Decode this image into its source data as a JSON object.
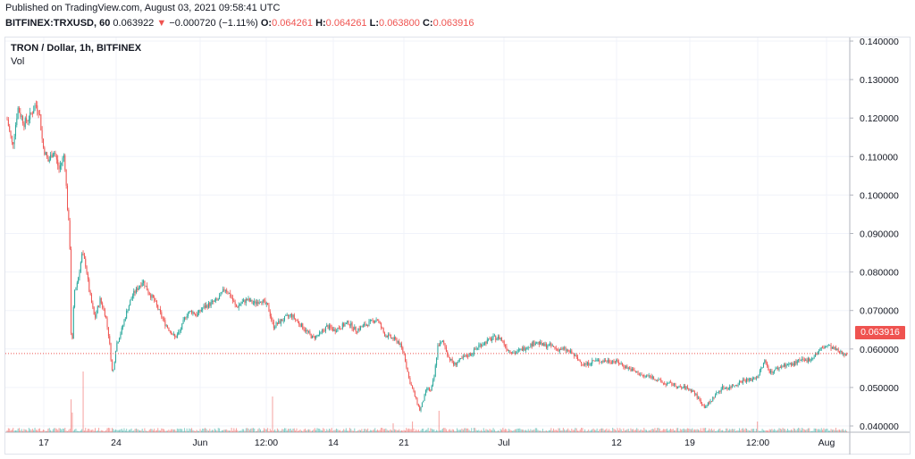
{
  "header": {
    "published": "Published on TradingView.com, August 03, 2021 09:58:41 UTC",
    "symbol_line": "BITFINEX:TRXUSD, 60",
    "last": "0.063922",
    "arrow": "▼",
    "change": "−0.000720 (−1.11%)",
    "o_label": "O:",
    "o_value": "0.064261",
    "h_label": "H:",
    "h_value": "0.064261",
    "l_label": "L:",
    "l_value": "0.063800",
    "c_label": "C:",
    "c_value": "0.063916"
  },
  "legend": {
    "title": "TRON / Dollar, 1h, BITFINEX",
    "volume": "Vol"
  },
  "price_axis": {
    "labels": [
      "0.140000",
      "0.130000",
      "0.120000",
      "0.110000",
      "0.100000",
      "0.090000",
      "0.080000",
      "0.070000",
      "0.060000",
      "0.050000",
      "0.040000"
    ],
    "values": [
      0.14,
      0.13,
      0.12,
      0.11,
      0.1,
      0.09,
      0.08,
      0.07,
      0.06,
      0.05,
      0.04
    ],
    "current_label": "0.063916",
    "current_value": 0.063916
  },
  "time_axis": {
    "labels": [
      "17",
      "24",
      "Jun",
      "12:00",
      "14",
      "21",
      "Jul",
      "12",
      "19",
      "12:00",
      "Aug"
    ]
  },
  "colors": {
    "up": "#26a69a",
    "down": "#ef5350",
    "grid": "#f0f3fa",
    "axis_text": "#131722"
  },
  "chart_data": {
    "type": "candlestick",
    "title": "TRON / Dollar, 1h, BITFINEX",
    "ylim": [
      0.038,
      0.142
    ],
    "key_points": [
      {
        "x": "May 14",
        "y": 0.125
      },
      {
        "x": "May 16",
        "y": 0.128
      },
      {
        "x": "May 17",
        "y": 0.126
      },
      {
        "x": "May 18",
        "y": 0.112
      },
      {
        "x": "May 19",
        "y": 0.1
      },
      {
        "x": "May 19",
        "y": 0.06
      },
      {
        "x": "May 20",
        "y": 0.085
      },
      {
        "x": "May 21",
        "y": 0.09
      },
      {
        "x": "May 23",
        "y": 0.068
      },
      {
        "x": "May 24",
        "y": 0.058
      },
      {
        "x": "May 26",
        "y": 0.082
      },
      {
        "x": "May 28",
        "y": 0.074
      },
      {
        "x": "May 30",
        "y": 0.069
      },
      {
        "x": "Jun 3",
        "y": 0.076
      },
      {
        "x": "Jun 6",
        "y": 0.08
      },
      {
        "x": "Jun 9",
        "y": 0.077
      },
      {
        "x": "Jun 12",
        "y": 0.07
      },
      {
        "x": "Jun 15",
        "y": 0.068
      },
      {
        "x": "Jun 18",
        "y": 0.072
      },
      {
        "x": "Jun 21",
        "y": 0.064
      },
      {
        "x": "Jun 22",
        "y": 0.048
      },
      {
        "x": "Jun 23",
        "y": 0.057
      },
      {
        "x": "Jun 25",
        "y": 0.063
      },
      {
        "x": "Jun 27",
        "y": 0.061
      },
      {
        "x": "Jul 1",
        "y": 0.068
      },
      {
        "x": "Jul 5",
        "y": 0.066
      },
      {
        "x": "Jul 9",
        "y": 0.064
      },
      {
        "x": "Jul 12",
        "y": 0.062
      },
      {
        "x": "Jul 15",
        "y": 0.058
      },
      {
        "x": "Jul 18",
        "y": 0.055
      },
      {
        "x": "Jul 20",
        "y": 0.05
      },
      {
        "x": "Jul 23",
        "y": 0.055
      },
      {
        "x": "Jul 26",
        "y": 0.059
      },
      {
        "x": "Jul 29",
        "y": 0.061
      },
      {
        "x": "Aug 1",
        "y": 0.066
      },
      {
        "x": "Aug 3",
        "y": 0.0639
      }
    ],
    "volume_spikes": [
      {
        "x": "May 19",
        "level": "high"
      },
      {
        "x": "May 20",
        "level": "high"
      },
      {
        "x": "Jun 22",
        "level": "medium"
      },
      {
        "x": "Jun 13",
        "level": "medium"
      }
    ]
  }
}
